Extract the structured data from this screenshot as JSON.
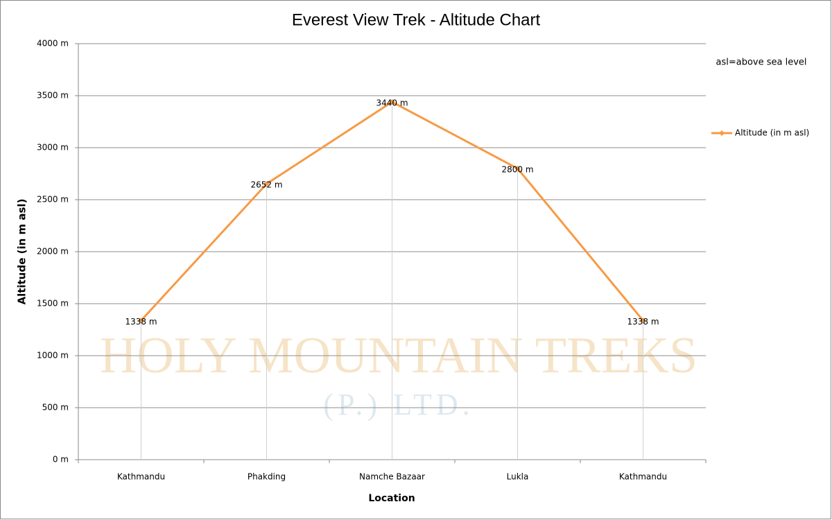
{
  "chart_data": {
    "type": "line",
    "title": "Everest View Trek - Altitude Chart",
    "annotation": "asl=above sea level",
    "watermark": [
      "HOLY MOUNTAIN TREKS",
      "(P.) LTD."
    ],
    "x_label": "Location",
    "y_label": "Altitude (in m asl)",
    "categories": [
      "Kathmandu",
      "Phakding",
      "Namche Bazaar",
      "Lukla",
      "Kathmandu"
    ],
    "series": [
      {
        "name": "Altitude (in m asl)",
        "color": "#f79a45",
        "values": [
          1338,
          2652,
          3440,
          2800,
          1338
        ],
        "value_labels": [
          "1338 m",
          "2652 m",
          "3440 m",
          "2800 m",
          "1338 m"
        ]
      }
    ],
    "ylim": [
      0,
      4000
    ],
    "yticks": [
      {
        "value": 0,
        "label": "0 m"
      },
      {
        "value": 500,
        "label": "500 m"
      },
      {
        "value": 1000,
        "label": "1000 m"
      },
      {
        "value": 1500,
        "label": "1500 m"
      },
      {
        "value": 2000,
        "label": "2000 m"
      },
      {
        "value": 2500,
        "label": "2500 m"
      },
      {
        "value": 3000,
        "label": "3000 m"
      },
      {
        "value": 3500,
        "label": "3500 m"
      },
      {
        "value": 4000,
        "label": "4000 m"
      }
    ],
    "grid": true,
    "legend": "right"
  }
}
